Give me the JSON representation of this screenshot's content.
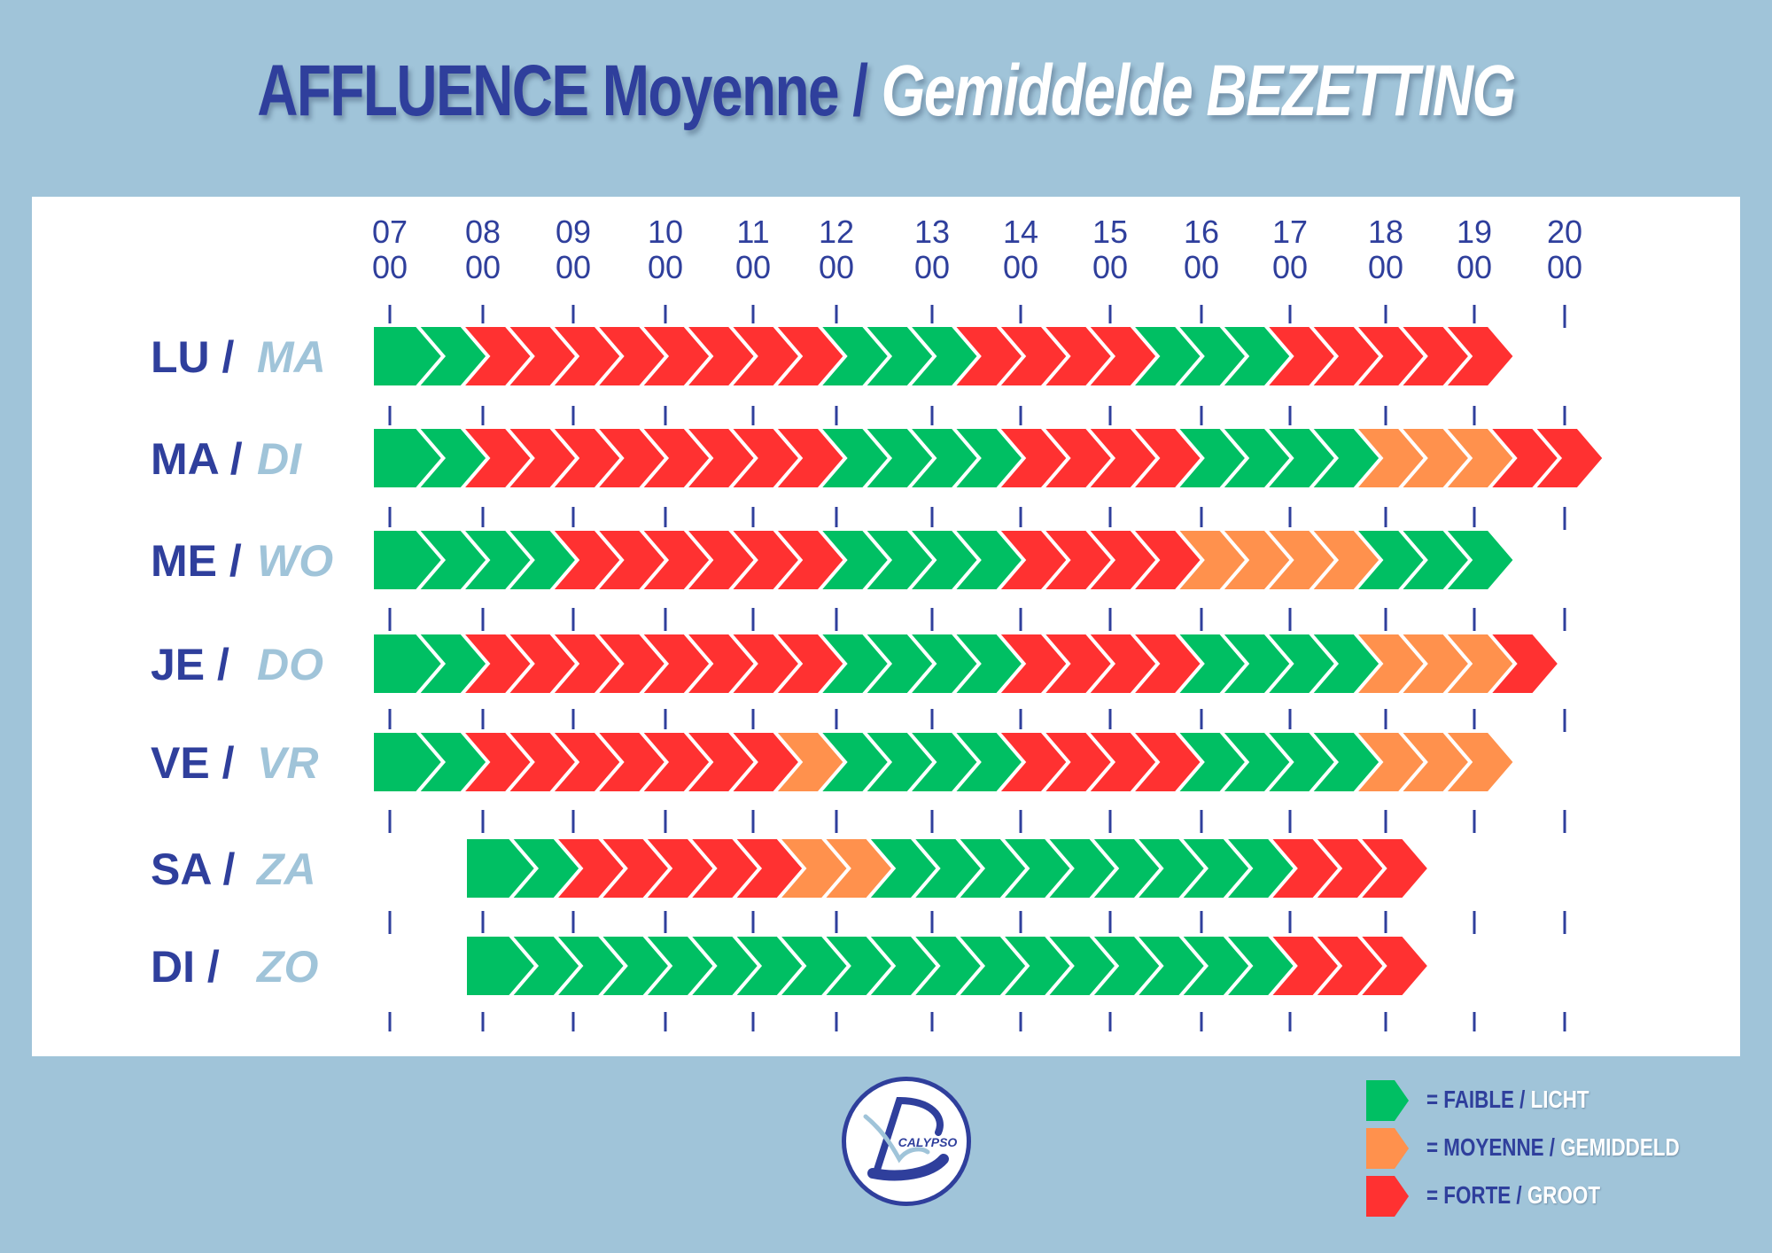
{
  "title": {
    "fr": "AFFLUENCE Moyenne",
    "sep": "/",
    "nl": "Gemiddelde BEZETTING"
  },
  "colors": {
    "faible": "#00bf63",
    "moyenne": "#ff914d",
    "forte": "#ff3131",
    "accent": "#2f3f9c",
    "light_blue": "#a0c4d9"
  },
  "chart_data": {
    "type": "timeline",
    "x_ticks": [
      {
        "h": "07",
        "m": "00"
      },
      {
        "h": "08",
        "m": "00"
      },
      {
        "h": "09",
        "m": "00"
      },
      {
        "h": "10",
        "m": "00"
      },
      {
        "h": "11",
        "m": "00"
      },
      {
        "h": "12",
        "m": "00"
      },
      {
        "h": "13",
        "m": "00"
      },
      {
        "h": "14",
        "m": "00"
      },
      {
        "h": "15",
        "m": "00"
      },
      {
        "h": "16",
        "m": "00"
      },
      {
        "h": "17",
        "m": "00"
      },
      {
        "h": "18",
        "m": "00"
      },
      {
        "h": "19",
        "m": "00"
      },
      {
        "h": "20",
        "m": "00"
      }
    ],
    "xlim": [
      7,
      20
    ],
    "rows": [
      {
        "fr": "LU",
        "nl": "MA",
        "start": 7,
        "levels": [
          "F",
          "F",
          "R",
          "R",
          "R",
          "R",
          "R",
          "R",
          "R",
          "R",
          "F",
          "F",
          "F",
          "R",
          "R",
          "R",
          "R",
          "F",
          "F",
          "F",
          "R",
          "R",
          "R",
          "R",
          "R"
        ]
      },
      {
        "fr": "MA",
        "nl": "DI",
        "start": 7,
        "levels": [
          "F",
          "F",
          "R",
          "R",
          "R",
          "R",
          "R",
          "R",
          "R",
          "R",
          "F",
          "F",
          "F",
          "F",
          "R",
          "R",
          "R",
          "R",
          "F",
          "F",
          "F",
          "F",
          "M",
          "M",
          "M",
          "R",
          "R"
        ]
      },
      {
        "fr": "ME",
        "nl": "WO",
        "start": 7,
        "levels": [
          "F",
          "F",
          "F",
          "F",
          "R",
          "R",
          "R",
          "R",
          "R",
          "R",
          "F",
          "F",
          "F",
          "F",
          "R",
          "R",
          "R",
          "R",
          "M",
          "M",
          "M",
          "M",
          "F",
          "F",
          "F"
        ]
      },
      {
        "fr": "JE",
        "nl": "DO",
        "start": 7,
        "levels": [
          "F",
          "F",
          "R",
          "R",
          "R",
          "R",
          "R",
          "R",
          "R",
          "R",
          "F",
          "F",
          "F",
          "F",
          "R",
          "R",
          "R",
          "R",
          "F",
          "F",
          "F",
          "F",
          "M",
          "M",
          "M",
          "R"
        ]
      },
      {
        "fr": "VE",
        "nl": "VR",
        "start": 7,
        "levels": [
          "F",
          "F",
          "R",
          "R",
          "R",
          "R",
          "R",
          "R",
          "R",
          "M",
          "F",
          "F",
          "F",
          "F",
          "R",
          "R",
          "R",
          "R",
          "F",
          "F",
          "F",
          "F",
          "M",
          "M",
          "M"
        ]
      },
      {
        "fr": "SA",
        "nl": "ZA",
        "start": 8,
        "levels": [
          "F",
          "F",
          "R",
          "R",
          "R",
          "R",
          "R",
          "M",
          "M",
          "F",
          "F",
          "F",
          "F",
          "F",
          "F",
          "F",
          "F",
          "F",
          "R",
          "R",
          "R"
        ]
      },
      {
        "fr": "DI",
        "nl": "ZO",
        "start": 8,
        "levels": [
          "F",
          "F",
          "F",
          "F",
          "F",
          "F",
          "F",
          "F",
          "F",
          "F",
          "F",
          "F",
          "F",
          "F",
          "F",
          "F",
          "F",
          "F",
          "R",
          "R",
          "R"
        ]
      }
    ]
  },
  "legend": [
    {
      "key": "F",
      "fr": "= FAIBLE",
      "sep": "/",
      "nl": "LICHT"
    },
    {
      "key": "M",
      "fr": "= MOYENNE",
      "sep": "/",
      "nl": "GEMIDDELD"
    },
    {
      "key": "R",
      "fr": "= FORTE",
      "sep": "/",
      "nl": "GROOT"
    }
  ],
  "logo": {
    "text": "CALYPSO"
  }
}
